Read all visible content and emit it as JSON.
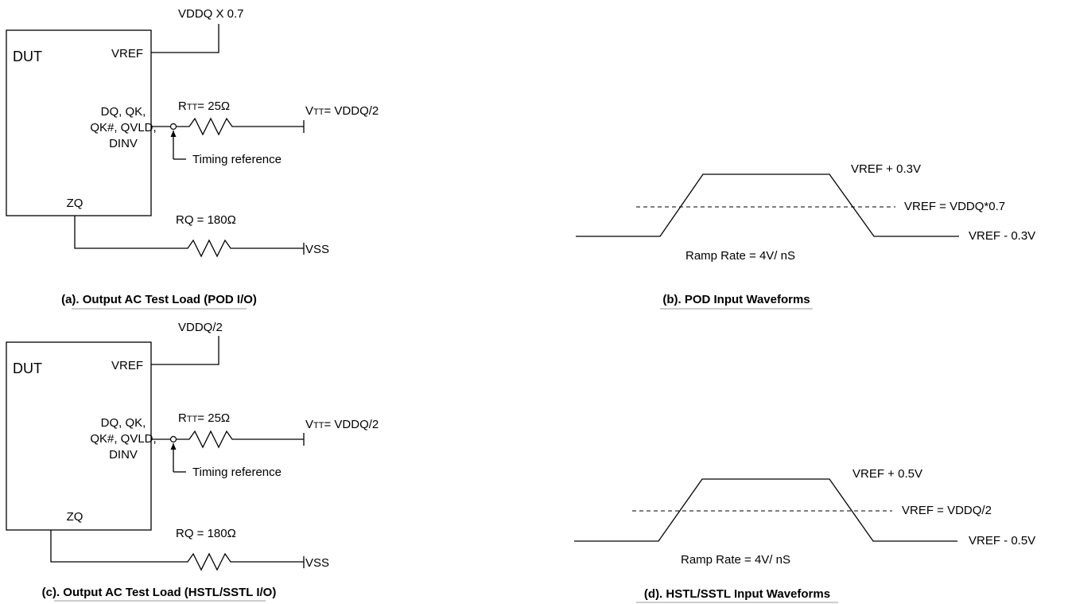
{
  "panel_a": {
    "dut_label": "DUT",
    "vref_pin": "VREF",
    "vref_source": "VDDQ X 0.7",
    "dq_pins_line1": "DQ, QK,",
    "dq_pins_line2": "QK#, QVLD,",
    "dq_pins_line3": "DINV",
    "rtt_prefix": "R",
    "rtt_sub": "TT",
    "rtt_value": "= 25Ω",
    "vtt_prefix": "V",
    "vtt_sub": "TT",
    "vtt_value": "= VDDQ/2",
    "timing_ref": "Timing reference",
    "zq_pin": "ZQ",
    "rq_label": "RQ = 180Ω",
    "vss_label": "VSS",
    "caption": "(a). Output AC Test Load (POD I/O)"
  },
  "panel_b": {
    "high_label": "VREF + 0.3V",
    "ref_label": "VREF = VDDQ*0.7",
    "low_label": "VREF - 0.3V",
    "ramp_label": "Ramp Rate = 4V/ nS",
    "caption": "(b). POD Input Waveforms"
  },
  "panel_c": {
    "dut_label": "DUT",
    "vref_pin": "VREF",
    "vref_source": "VDDQ/2",
    "dq_pins_line1": "DQ, QK,",
    "dq_pins_line2": "QK#, QVLD,",
    "dq_pins_line3": "DINV",
    "rtt_prefix": "R",
    "rtt_sub": "TT",
    "rtt_value": "= 25Ω",
    "vtt_prefix": "V",
    "vtt_sub": "TT",
    "vtt_value": "= VDDQ/2",
    "timing_ref": "Timing reference",
    "zq_pin": "ZQ",
    "rq_label": "RQ = 180Ω",
    "vss_label": "VSS",
    "caption": "(c). Output AC Test Load (HSTL/SSTL I/O)"
  },
  "panel_d": {
    "high_label": "VREF + 0.5V",
    "ref_label": "VREF = VDDQ/2",
    "low_label": "VREF - 0.5V",
    "ramp_label": "Ramp Rate = 4V/ nS",
    "caption": "(d). HSTL/SSTL Input Waveforms"
  }
}
